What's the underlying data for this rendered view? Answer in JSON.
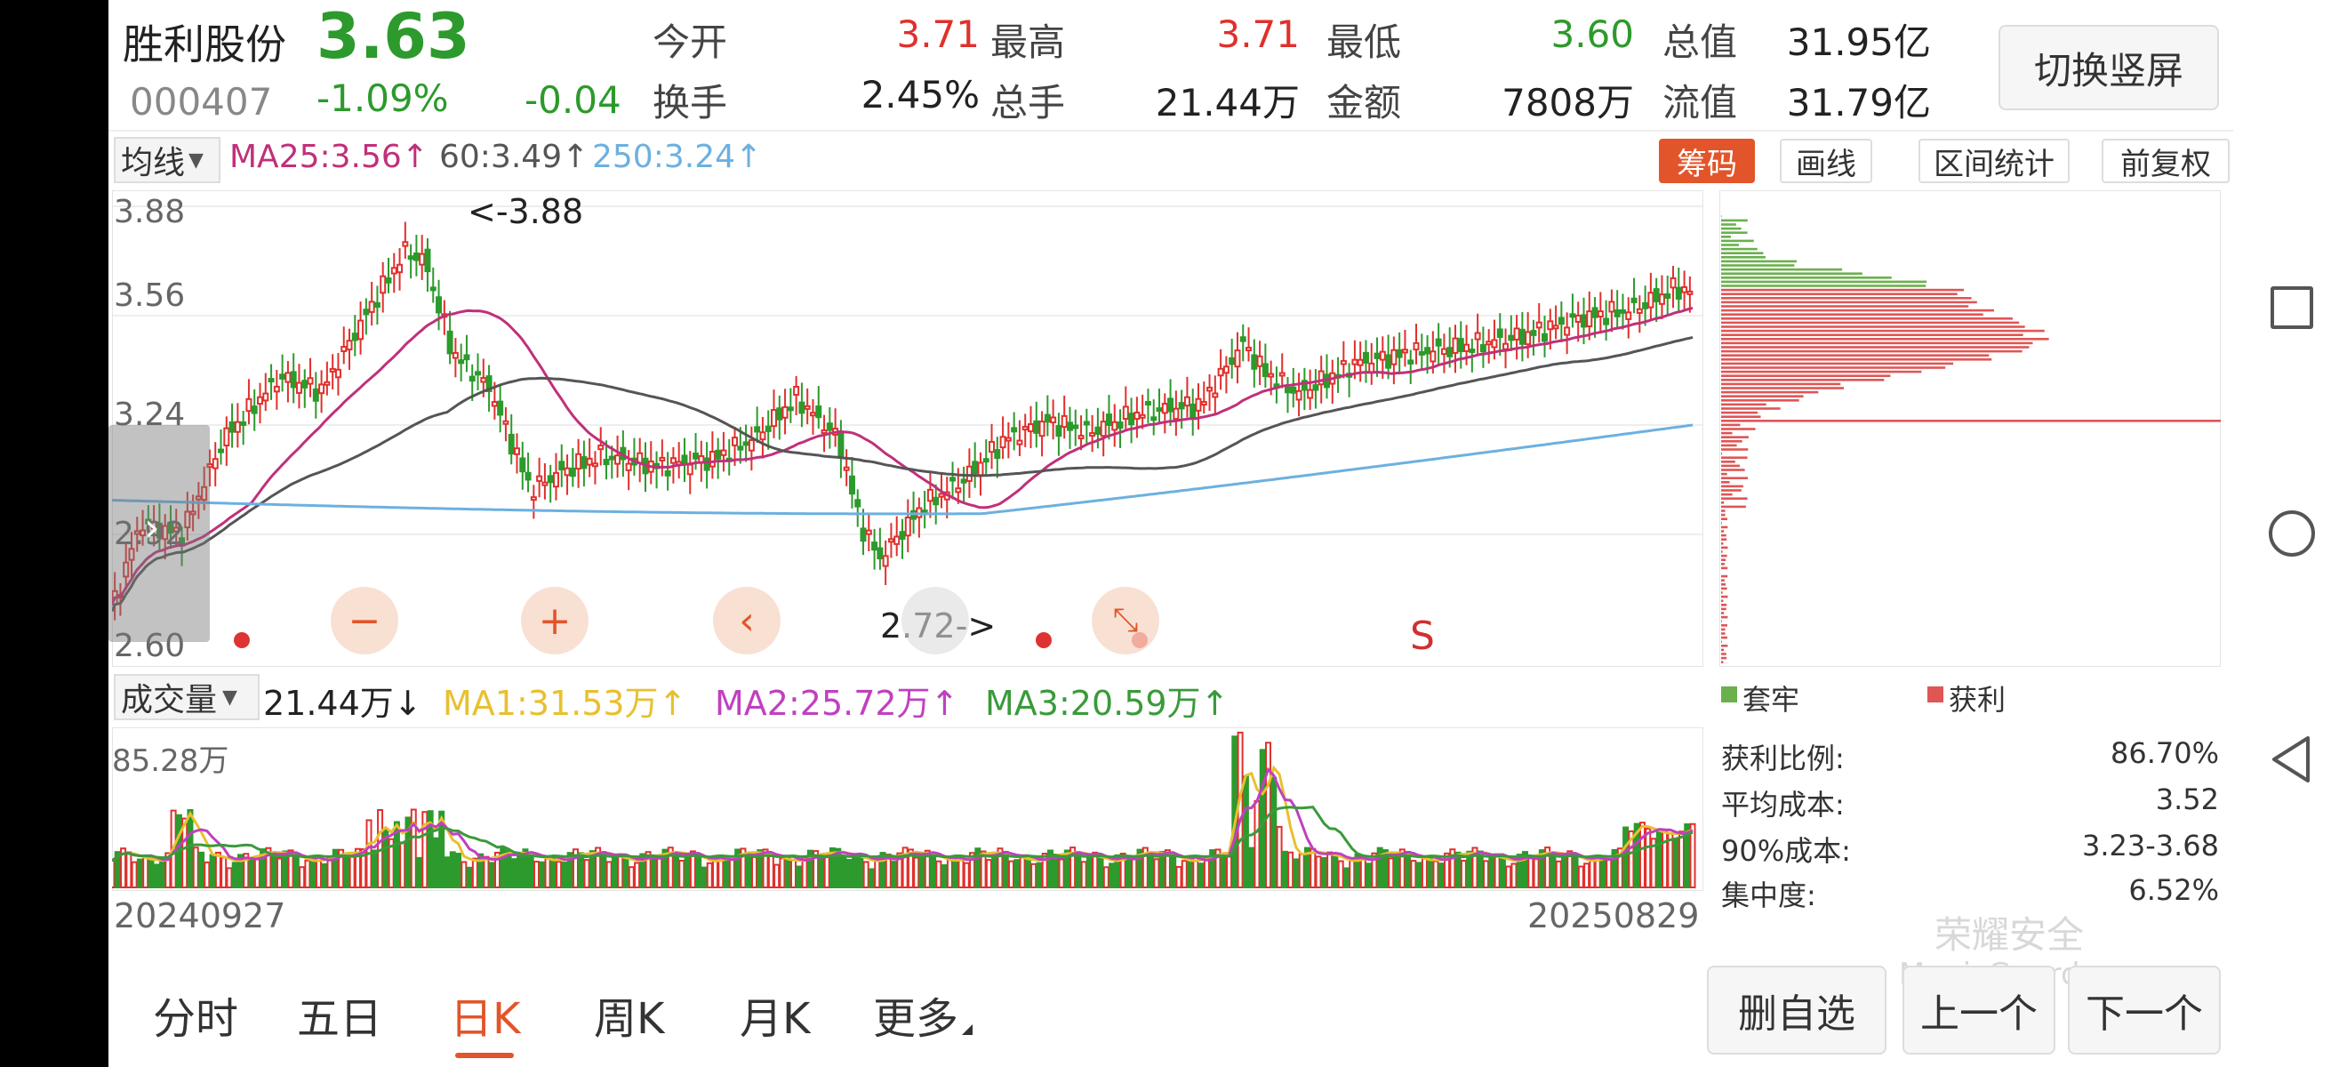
{
  "header": {
    "name": "胜利股份",
    "price": "3.63",
    "code": "000407",
    "change_pct": "-1.09%",
    "change_amt": "-0.04",
    "stats": [
      {
        "label": "今开",
        "value": "3.71",
        "color": "red"
      },
      {
        "label": "最高",
        "value": "3.71",
        "color": "red"
      },
      {
        "label": "最低",
        "value": "3.60",
        "color": "green"
      },
      {
        "label": "总值",
        "value": "31.95亿",
        "color": "dark"
      },
      {
        "label": "换手",
        "value": "2.45%",
        "color": "dark"
      },
      {
        "label": "总手",
        "value": "21.44万",
        "color": "dark"
      },
      {
        "label": "金额",
        "value": "7808万",
        "color": "dark"
      },
      {
        "label": "流值",
        "value": "31.79亿",
        "color": "dark"
      }
    ],
    "switch_button": "切换竖屏"
  },
  "ma_bar": {
    "selector": "均线",
    "ma25": "MA25:3.56↑",
    "ma60": "60:3.49↑",
    "ma250": "250:3.24↑",
    "colors": {
      "ma25": "#c0307a",
      "ma60": "#555555",
      "ma250": "#6cb0e0"
    }
  },
  "tools": {
    "chips": "筹码",
    "draw": "画线",
    "range_stats": "区间统计",
    "adjust": "前复权"
  },
  "price_axis": {
    "labels": [
      "3.88",
      "3.56",
      "3.24",
      "2.92",
      "2.60"
    ],
    "high_marker": "<-3.88",
    "low_marker": "2.72->",
    "signal": "S"
  },
  "volume_bar": {
    "selector": "成交量",
    "vol": "21.44万↓",
    "ma1": "MA1:31.53万↑",
    "ma2": "MA2:25.72万↑",
    "ma3": "MA3:20.59万↑",
    "max_label": "85.28万",
    "colors": {
      "ma1": "#e8c030",
      "ma2": "#c040c0",
      "ma3": "#3a9a3a"
    }
  },
  "dates": {
    "start": "20240927",
    "end": "20250829"
  },
  "chip_panel": {
    "legend_trapped": "套牢",
    "legend_profit": "获利",
    "rows": [
      {
        "label": "获利比例:",
        "value": "86.70%"
      },
      {
        "label": "平均成本:",
        "value": "3.52"
      },
      {
        "label": "90%成本:",
        "value": "3.23-3.68"
      },
      {
        "label": "集中度:",
        "value": "6.52%"
      }
    ]
  },
  "watermark": {
    "line1": "荣耀安全",
    "line2": "MagicGuard"
  },
  "bottom_tabs": [
    "分时",
    "五日",
    "日K",
    "周K",
    "月K",
    "更多"
  ],
  "active_tab": "日K",
  "bottom_buttons": {
    "remove": "删自选",
    "prev": "上一个",
    "next": "下一个"
  },
  "chart_data": {
    "type": "candlestick",
    "x_start": "20240927",
    "x_end": "20250829",
    "ylim": [
      2.6,
      3.88
    ],
    "y_ticks": [
      3.88,
      3.56,
      3.24,
      2.92,
      2.6
    ],
    "annotations": [
      {
        "text": "<-3.88",
        "value": 3.88
      },
      {
        "text": "2.72->",
        "value": 2.72
      }
    ],
    "ma_series": [
      {
        "name": "MA25",
        "last": 3.56
      },
      {
        "name": "60",
        "last": 3.49
      },
      {
        "name": "250",
        "last": 3.24
      }
    ],
    "volume": {
      "max": "85.28万",
      "last": "21.44万",
      "ma": [
        {
          "name": "MA1",
          "value": "31.53万"
        },
        {
          "name": "MA2",
          "value": "25.72万"
        },
        {
          "name": "MA3",
          "value": "20.59万"
        }
      ]
    },
    "chip_distribution": {
      "profit_ratio": "86.70%",
      "average_cost": 3.52,
      "cost_90": "3.23-3.68",
      "concentration": "6.52%"
    }
  }
}
